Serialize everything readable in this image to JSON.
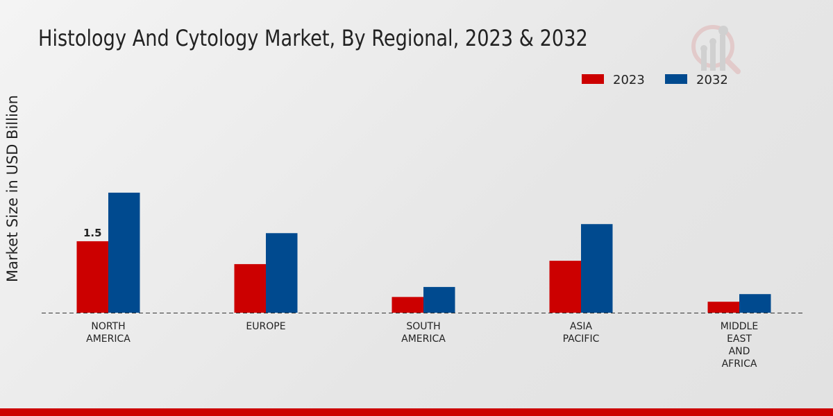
{
  "chart_data": {
    "type": "bar",
    "title": "Histology And Cytology Market, By Regional, 2023 & 2032",
    "ylabel": "Market Size in USD Billion",
    "xlabel": "",
    "categories": [
      [
        "NORTH",
        "AMERICA"
      ],
      [
        "EUROPE"
      ],
      [
        "SOUTH",
        "AMERICA"
      ],
      [
        "ASIA",
        "PACIFIC"
      ],
      [
        "MIDDLE",
        "EAST",
        "AND",
        "AFRICA"
      ]
    ],
    "series": [
      {
        "name": "2023",
        "color": "#cc0000",
        "values": [
          1.5,
          1.02,
          0.33,
          1.09,
          0.23
        ]
      },
      {
        "name": "2032",
        "color": "#004a8f",
        "values": [
          2.52,
          1.67,
          0.54,
          1.86,
          0.39
        ]
      }
    ],
    "data_labels": [
      {
        "series": 0,
        "index": 0,
        "text": "1.5"
      }
    ],
    "ylim": [
      0,
      5.8
    ],
    "grid": false,
    "legend": "top-right"
  }
}
